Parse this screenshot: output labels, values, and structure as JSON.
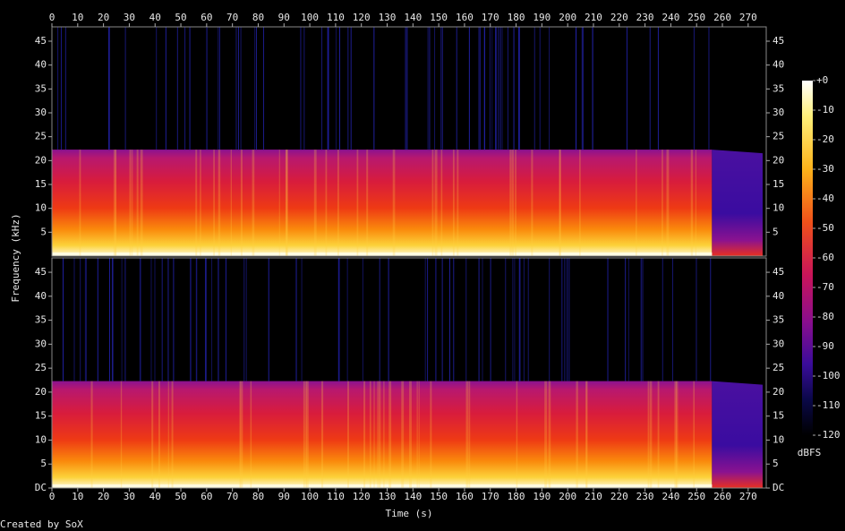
{
  "chart_data": {
    "type": "spectrogram",
    "x_label": "Time (s)",
    "y_label": "Frequency (kHz)",
    "credit": "Created by SoX",
    "xlim": [
      0,
      277
    ],
    "xticks": [
      0,
      10,
      20,
      30,
      40,
      50,
      60,
      70,
      80,
      90,
      100,
      110,
      120,
      130,
      140,
      150,
      160,
      170,
      180,
      190,
      200,
      210,
      220,
      230,
      240,
      250,
      260,
      270
    ],
    "ylim": [
      0,
      48
    ],
    "panels": [
      {
        "yticks": [
          5,
          10,
          15,
          20,
          25,
          30,
          35,
          40,
          45
        ]
      },
      {
        "yticks": [
          {
            "value": 0,
            "label": "DC"
          },
          5,
          10,
          15,
          20,
          25,
          30,
          35,
          40,
          45
        ]
      }
    ],
    "colorbar": {
      "label": "dBFS",
      "lim": [
        -120,
        0
      ],
      "ticks": [
        {
          "value": 0,
          "label": "+0"
        },
        -10,
        -20,
        -30,
        -40,
        -50,
        -60,
        -70,
        -80,
        -90,
        -100,
        -110,
        -120
      ]
    }
  }
}
